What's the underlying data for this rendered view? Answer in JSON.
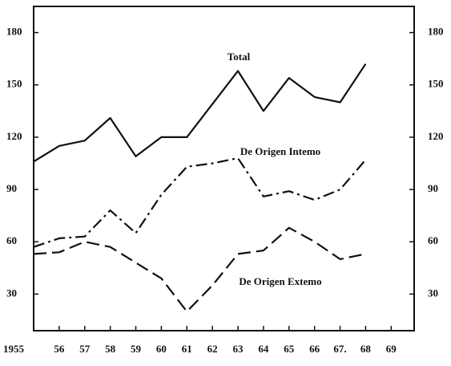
{
  "chart_data": {
    "type": "line",
    "x": [
      1955,
      1956,
      1957,
      1958,
      1959,
      1960,
      1961,
      1962,
      1963,
      1964,
      1965,
      1966,
      1967,
      1968
    ],
    "series": [
      {
        "name": "Total",
        "color": "#111111",
        "style": "solid",
        "values": [
          106,
          115,
          118,
          131,
          109,
          120,
          120,
          139,
          158,
          135,
          154,
          143,
          140,
          162
        ]
      },
      {
        "name": "De Origen Intemo",
        "color": "#111111",
        "style": "dashdot",
        "values": [
          57,
          62,
          63,
          78,
          65,
          87,
          103,
          105,
          108,
          86,
          89,
          84,
          90,
          107
        ]
      },
      {
        "name": "De Origen Extemo",
        "color": "#111111",
        "style": "dashed",
        "values": [
          53,
          54,
          60,
          57,
          48,
          39,
          20,
          35,
          53,
          55,
          68,
          60,
          50,
          53
        ]
      }
    ],
    "xlim": [
      1955,
      1969.9
    ],
    "xticks": [
      1955,
      {
        "value": 1956,
        "label": "56"
      },
      {
        "value": 1957,
        "label": "57"
      },
      {
        "value": 1958,
        "label": "58"
      },
      {
        "value": 1959,
        "label": "59"
      },
      {
        "value": 1960,
        "label": "60"
      },
      {
        "value": 1961,
        "label": "61"
      },
      {
        "value": 1962,
        "label": "62"
      },
      {
        "value": 1963,
        "label": "63"
      },
      {
        "value": 1964,
        "label": "64"
      },
      {
        "value": 1965,
        "label": "65"
      },
      {
        "value": 1966,
        "label": "66"
      },
      {
        "value": 1967,
        "label": "67."
      },
      {
        "value": 1968,
        "label": "68"
      },
      {
        "value": 1969,
        "label": "69"
      }
    ],
    "ylim": [
      9,
      195
    ],
    "yticks": [
      30,
      60,
      90,
      120,
      150,
      180
    ],
    "y2lim": [
      9,
      195
    ],
    "y2ticks": [
      30,
      60,
      90,
      120,
      150,
      180
    ]
  }
}
